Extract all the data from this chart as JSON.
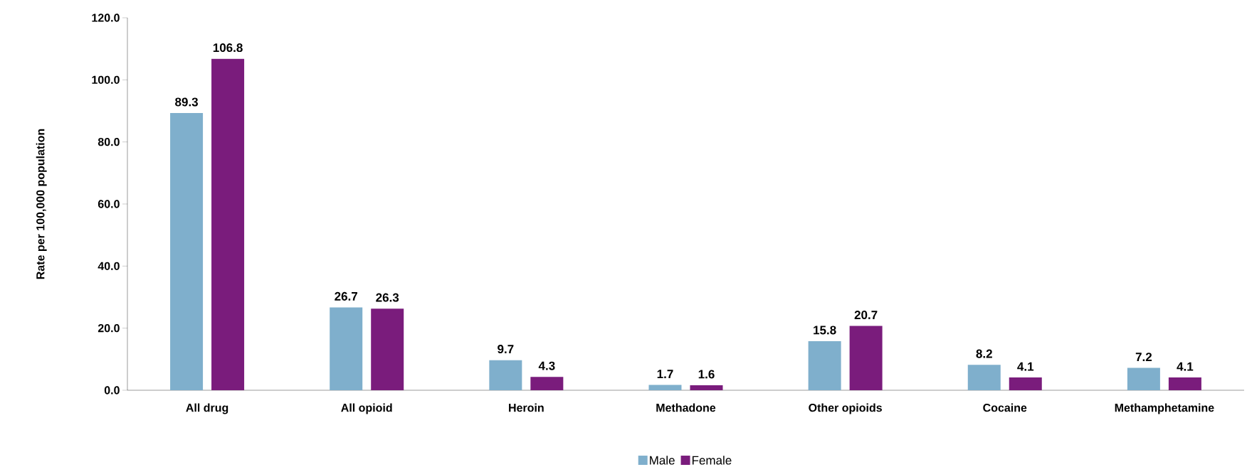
{
  "chart_data": {
    "type": "bar",
    "ylabel": "Rate per 100,000 population",
    "categories": [
      "All drug",
      "All opioid",
      "Heroin",
      "Methadone",
      "Other opioids",
      "Cocaine",
      "Methamphetamine"
    ],
    "series": [
      {
        "name": "Male",
        "color": "#7fafcc",
        "values": [
          89.3,
          26.7,
          9.7,
          1.7,
          15.8,
          8.2,
          7.2
        ]
      },
      {
        "name": "Female",
        "color": "#7a1c7c",
        "values": [
          106.8,
          26.3,
          4.3,
          1.6,
          20.7,
          4.1,
          4.1
        ]
      }
    ],
    "ylim": [
      0,
      120
    ],
    "yticks": [
      {
        "value": 0,
        "label": "0.0"
      },
      {
        "value": 20,
        "label": "20.0"
      },
      {
        "value": 40,
        "label": "40.0"
      },
      {
        "value": 60,
        "label": "60.0"
      },
      {
        "value": 80,
        "label": "80.0"
      },
      {
        "value": 100,
        "label": "100.0"
      },
      {
        "value": 120,
        "label": "120.0"
      }
    ],
    "data_labels": true,
    "legend": "bottom",
    "grid": false
  }
}
